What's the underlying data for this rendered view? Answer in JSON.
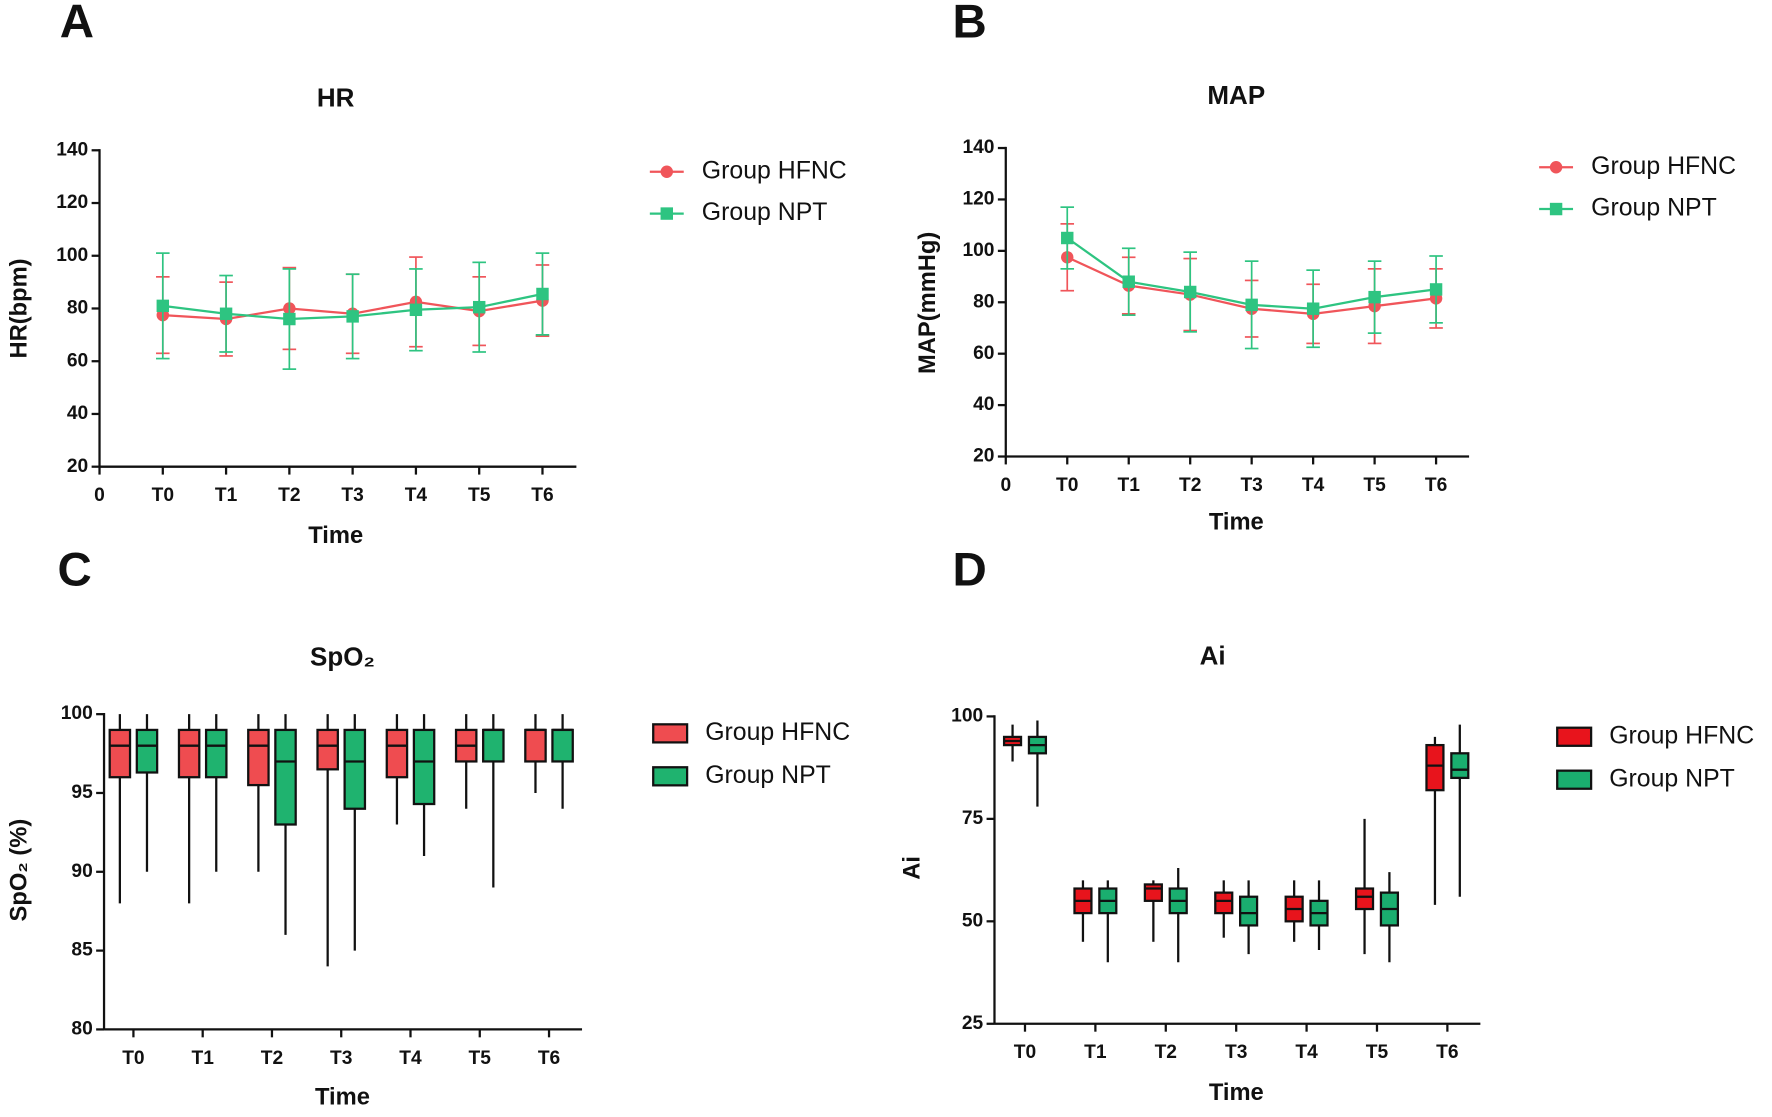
{
  "chart_data": [
    {
      "type": "line",
      "panel": "A",
      "title": "HR",
      "xlabel": "Time",
      "ylabel": "HR(bpm)",
      "categories": [
        "0",
        "T0",
        "T1",
        "T2",
        "T3",
        "T4",
        "T5",
        "T6"
      ],
      "ylim": [
        20,
        140
      ],
      "yticks": [
        20,
        40,
        60,
        80,
        100,
        120,
        140
      ],
      "series": [
        {
          "name": "Group HFNC",
          "color": "#f0555a",
          "marker": "circle",
          "values": [
            null,
            77.5,
            76,
            80,
            78,
            82.5,
            79,
            83
          ],
          "errors": [
            null,
            14.5,
            14,
            15.5,
            15,
            17,
            13,
            13.5
          ]
        },
        {
          "name": "Group NPT",
          "color": "#2ec481",
          "marker": "square",
          "values": [
            null,
            81,
            78,
            76,
            77,
            79.5,
            80.5,
            85.5
          ],
          "errors": [
            null,
            20,
            14.5,
            19,
            16,
            15.5,
            17,
            15.5
          ]
        }
      ]
    },
    {
      "type": "line",
      "panel": "B",
      "title": "MAP",
      "xlabel": "Time",
      "ylabel": "MAP(mmHg)",
      "categories": [
        "0",
        "T0",
        "T1",
        "T2",
        "T3",
        "T4",
        "T5",
        "T6"
      ],
      "ylim": [
        20,
        140
      ],
      "yticks": [
        20,
        40,
        60,
        80,
        100,
        120,
        140
      ],
      "series": [
        {
          "name": "Group HFNC",
          "color": "#f0555a",
          "marker": "circle",
          "values": [
            null,
            97.5,
            86.5,
            83,
            77.5,
            75.5,
            78.5,
            81.5
          ],
          "errors": [
            null,
            13,
            11,
            14,
            11,
            11.5,
            14.5,
            11.5
          ]
        },
        {
          "name": "Group NPT",
          "color": "#2ec481",
          "marker": "square",
          "values": [
            null,
            105,
            88,
            84,
            79,
            77.5,
            82,
            85
          ],
          "errors": [
            null,
            12,
            13,
            15.5,
            17,
            15,
            14,
            13
          ]
        }
      ]
    },
    {
      "type": "box",
      "panel": "C",
      "title": "SpO₂",
      "xlabel": "Time",
      "ylabel": "SpO₂ (%)",
      "categories": [
        "T0",
        "T1",
        "T2",
        "T3",
        "T4",
        "T5",
        "T6"
      ],
      "ylim": [
        80,
        100
      ],
      "yticks": [
        80,
        85,
        90,
        95,
        100
      ],
      "series": [
        {
          "name": "Group HFNC",
          "color": "#ef4c50",
          "min": [
            88,
            88,
            90,
            84,
            93,
            94,
            95
          ],
          "q1": [
            96,
            96,
            95.5,
            96.5,
            96,
            97,
            97
          ],
          "median": [
            98,
            98,
            98,
            98,
            98,
            98,
            99
          ],
          "q3": [
            99,
            99,
            99,
            99,
            99,
            99,
            99
          ],
          "max": [
            100,
            100,
            100,
            100,
            100,
            100,
            100
          ]
        },
        {
          "name": "Group NPT",
          "color": "#1fb36f",
          "min": [
            90,
            90,
            86,
            85,
            91,
            89,
            94
          ],
          "q1": [
            96.3,
            96,
            93,
            94,
            94.3,
            97,
            97
          ],
          "median": [
            98,
            98,
            97,
            97,
            97,
            99,
            99
          ],
          "q3": [
            99,
            99,
            99,
            99,
            99,
            99,
            99
          ],
          "max": [
            100,
            100,
            100,
            100,
            100,
            100,
            100
          ]
        }
      ]
    },
    {
      "type": "box",
      "panel": "D",
      "title": "Ai",
      "xlabel": "Time",
      "ylabel": "Ai",
      "categories": [
        "T0",
        "T1",
        "T2",
        "T3",
        "T4",
        "T5",
        "T6"
      ],
      "ylim": [
        25,
        100
      ],
      "yticks": [
        25,
        50,
        75,
        100
      ],
      "series": [
        {
          "name": "Group HFNC",
          "color": "#e8141c",
          "min": [
            89,
            45,
            45,
            46,
            45,
            42,
            54
          ],
          "q1": [
            93,
            52,
            55,
            52,
            50,
            53,
            82
          ],
          "median": [
            94,
            55,
            58,
            55,
            53,
            56,
            88
          ],
          "q3": [
            95,
            58,
            59,
            57,
            56,
            58,
            93
          ],
          "max": [
            98,
            60,
            60,
            60,
            60,
            75,
            95
          ]
        },
        {
          "name": "Group NPT",
          "color": "#1aae6f",
          "min": [
            78,
            40,
            40,
            42,
            43,
            40,
            56
          ],
          "q1": [
            91,
            52,
            52,
            49,
            49,
            49,
            85
          ],
          "median": [
            93,
            55,
            55,
            52,
            52,
            53,
            87
          ],
          "q3": [
            95,
            58,
            58,
            56,
            55,
            57,
            91
          ],
          "max": [
            99,
            60,
            63,
            60,
            60,
            62,
            98
          ]
        }
      ]
    }
  ]
}
